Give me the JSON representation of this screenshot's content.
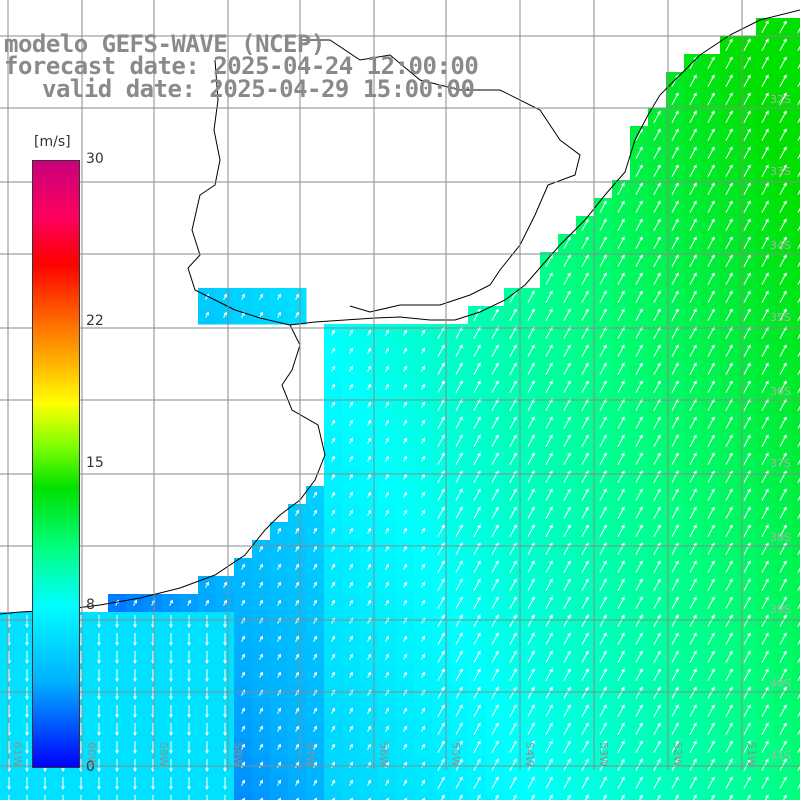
{
  "title": {
    "line1": "modelo GEFS-WAVE (NCEP)",
    "line2": "forecast date: 2025-04-24 12:00:00",
    "line3": "valid date: 2025-04-29 15:00:00"
  },
  "colorbar": {
    "unit": "[m/s]",
    "ticks": [
      {
        "value": 30,
        "label": "30"
      },
      {
        "value": 22,
        "label": "22"
      },
      {
        "value": 15,
        "label": "15"
      },
      {
        "value": 8,
        "label": "8"
      },
      {
        "value": 0,
        "label": "0"
      }
    ],
    "min": 0,
    "max": 30
  },
  "longitude_labels": [
    "61W",
    "60W",
    "59W",
    "58W",
    "57W",
    "56W",
    "55W",
    "54W",
    "53W",
    "52W",
    "51W"
  ],
  "latitude_labels": [
    "32S",
    "33S",
    "34S",
    "35S",
    "36S",
    "37S",
    "38S",
    "39S",
    "40S",
    "41S"
  ],
  "colors": {
    "land": "#ffffff",
    "coast": "#000000",
    "grid": "#888888",
    "arrow": "#ffffff",
    "title": "#8a8a8a"
  }
}
